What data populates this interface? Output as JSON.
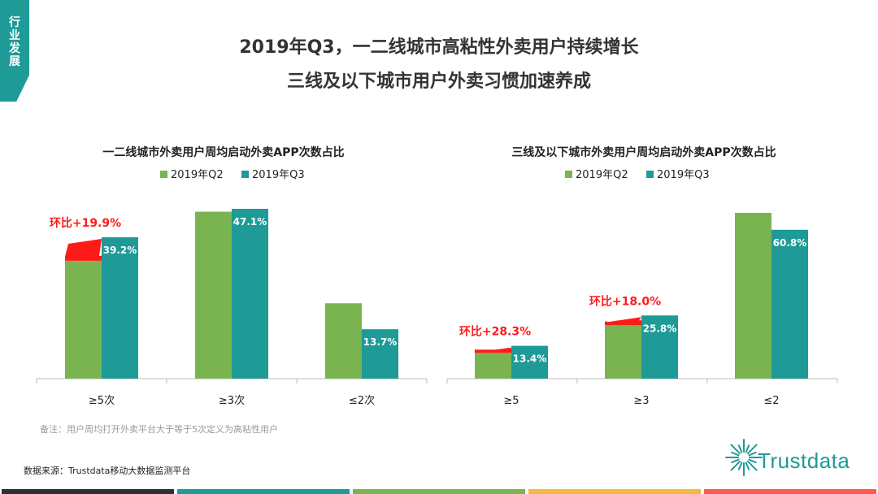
{
  "tag": [
    "行",
    "业",
    "发",
    "展"
  ],
  "title_line1": "2019年Q3，一二线城市高粘性外卖用户持续增长",
  "title_line2": "三线及以下城市用户外卖习惯加速养成",
  "colors": {
    "q2": "#7ab451",
    "q3": "#1e9a97",
    "highlight": "#ff1a1a",
    "tag": "#1e9a97",
    "footer": [
      "#2a2f3a",
      "#1e9a97",
      "#7ab451",
      "#f5b83d",
      "#ff5a4f"
    ]
  },
  "chart_data": [
    {
      "type": "bar",
      "title": "一二线城市外卖用户周均启动外卖APP次数占比",
      "categories": [
        "≥5次",
        "≥3次",
        "≤2次"
      ],
      "series": [
        {
          "name": "2019年Q2",
          "values": [
            32.7,
            46.3,
            20.9
          ]
        },
        {
          "name": "2019年Q3",
          "values": [
            39.2,
            47.1,
            13.7
          ]
        }
      ],
      "data_labels": [
        "39.2%",
        "47.1%",
        "13.7%"
      ],
      "ylim": [
        0,
        50
      ],
      "annotations": [
        {
          "category": "≥5次",
          "text": "环比+19.9%"
        }
      ],
      "legend": "top",
      "grid": false
    },
    {
      "type": "bar",
      "title": "三线及以下城市外卖用户周均启动外卖APP次数占比",
      "categories": [
        "≥5",
        "≥3",
        "≤2"
      ],
      "series": [
        {
          "name": "2019年Q2",
          "values": [
            10.5,
            21.8,
            67.7
          ]
        },
        {
          "name": "2019年Q3",
          "values": [
            13.4,
            25.8,
            60.8
          ]
        }
      ],
      "data_labels": [
        "13.4%",
        "25.8%",
        "60.8%"
      ],
      "ylim": [
        0,
        70
      ],
      "annotations": [
        {
          "category": "≥5",
          "text": "环比+28.3%"
        },
        {
          "category": "≥3",
          "text": "环比+18.0%"
        }
      ],
      "legend": "top",
      "grid": false
    }
  ],
  "note": "备注：用户周均打开外卖平台大于等于5次定义为高粘性用户",
  "source": "数据来源：Trustdata移动大数据监测平台",
  "logo_text": "Trustdata"
}
